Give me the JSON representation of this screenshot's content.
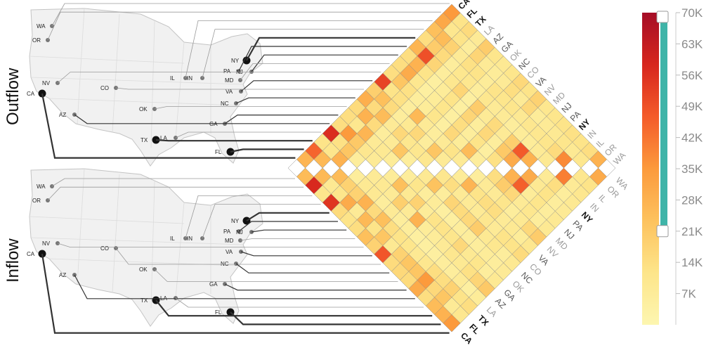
{
  "sections": [
    {
      "id": "outflow",
      "label": "Outflow"
    },
    {
      "id": "inflow",
      "label": "Inflow"
    }
  ],
  "states": [
    {
      "code": "WA",
      "emphasis": "light"
    },
    {
      "code": "OR",
      "emphasis": "light"
    },
    {
      "code": "IL",
      "emphasis": "light"
    },
    {
      "code": "IN",
      "emphasis": "light"
    },
    {
      "code": "NY",
      "emphasis": "bold"
    },
    {
      "code": "PA",
      "emphasis": "medium"
    },
    {
      "code": "NJ",
      "emphasis": "medium"
    },
    {
      "code": "MD",
      "emphasis": "light"
    },
    {
      "code": "NV",
      "emphasis": "light"
    },
    {
      "code": "VA",
      "emphasis": "medium"
    },
    {
      "code": "CO",
      "emphasis": "light"
    },
    {
      "code": "NC",
      "emphasis": "medium"
    },
    {
      "code": "OK",
      "emphasis": "light"
    },
    {
      "code": "GA",
      "emphasis": "medium"
    },
    {
      "code": "AZ",
      "emphasis": "medium"
    },
    {
      "code": "LA",
      "emphasis": "light"
    },
    {
      "code": "TX",
      "emphasis": "bold"
    },
    {
      "code": "FL",
      "emphasis": "bold"
    },
    {
      "code": "CA",
      "emphasis": "bold"
    }
  ],
  "colors": {
    "scale": [
      "#fdf6b0",
      "#fde58a",
      "#fdc25e",
      "#fc9a3c",
      "#f45b2a",
      "#d7261e",
      "#a50d26"
    ],
    "missing": "#ffffff",
    "cell_stroke": "#8c8c8c",
    "slider_track": "#3fb4a8",
    "line": "#333333",
    "map_fill": "#f1f1f1",
    "map_stroke": "#c4c4c4"
  },
  "chart_data": {
    "type": "heatmap",
    "title": "",
    "xlabel": "",
    "ylabel": "",
    "rows": [
      "WA",
      "OR",
      "IL",
      "IN",
      "NY",
      "PA",
      "NJ",
      "MD",
      "NV",
      "VA",
      "CO",
      "NC",
      "OK",
      "GA",
      "AZ",
      "LA",
      "TX",
      "FL",
      "CA"
    ],
    "cols": [
      "WA",
      "OR",
      "IL",
      "IN",
      "NY",
      "PA",
      "NJ",
      "MD",
      "NV",
      "VA",
      "CO",
      "NC",
      "OK",
      "GA",
      "AZ",
      "LA",
      "TX",
      "FL",
      "CA"
    ],
    "values": [
      [
        null,
        28,
        14,
        12,
        13,
        12,
        11,
        10,
        18,
        12,
        16,
        11,
        9,
        11,
        20,
        8,
        15,
        12,
        35
      ],
      [
        30,
        null,
        10,
        9,
        11,
        9,
        8,
        7,
        16,
        8,
        14,
        8,
        7,
        8,
        17,
        6,
        12,
        10,
        31
      ],
      [
        12,
        10,
        null,
        38,
        15,
        11,
        10,
        10,
        9,
        11,
        11,
        12,
        7,
        12,
        13,
        8,
        18,
        25,
        24
      ],
      [
        10,
        8,
        40,
        null,
        9,
        8,
        7,
        7,
        6,
        8,
        8,
        10,
        6,
        10,
        10,
        6,
        15,
        20,
        14
      ],
      [
        9,
        6,
        14,
        8,
        null,
        28,
        47,
        19,
        8,
        15,
        8,
        20,
        5,
        17,
        10,
        6,
        17,
        49,
        27
      ],
      [
        8,
        6,
        12,
        9,
        30,
        null,
        30,
        21,
        6,
        16,
        6,
        17,
        5,
        12,
        7,
        5,
        12,
        28,
        14
      ],
      [
        9,
        6,
        11,
        7,
        46,
        28,
        null,
        13,
        5,
        12,
        6,
        14,
        5,
        11,
        7,
        5,
        10,
        30,
        14
      ],
      [
        9,
        6,
        10,
        8,
        16,
        20,
        14,
        null,
        6,
        25,
        7,
        16,
        5,
        11,
        7,
        6,
        13,
        22,
        14
      ],
      [
        20,
        16,
        9,
        6,
        11,
        8,
        8,
        6,
        null,
        8,
        12,
        8,
        6,
        8,
        26,
        6,
        13,
        12,
        52
      ],
      [
        10,
        7,
        9,
        8,
        14,
        14,
        12,
        27,
        7,
        null,
        8,
        22,
        6,
        16,
        9,
        6,
        15,
        24,
        19
      ],
      [
        15,
        12,
        12,
        8,
        10,
        8,
        8,
        8,
        14,
        10,
        null,
        10,
        10,
        10,
        16,
        8,
        25,
        15,
        29
      ],
      [
        9,
        6,
        10,
        9,
        20,
        16,
        15,
        17,
        6,
        23,
        9,
        null,
        6,
        22,
        8,
        6,
        15,
        28,
        15
      ],
      [
        8,
        6,
        7,
        6,
        6,
        6,
        5,
        5,
        7,
        6,
        11,
        6,
        null,
        7,
        9,
        8,
        27,
        10,
        14
      ],
      [
        9,
        6,
        11,
        9,
        16,
        11,
        12,
        12,
        7,
        18,
        9,
        24,
        7,
        null,
        8,
        10,
        21,
        35,
        14
      ],
      [
        21,
        17,
        13,
        9,
        10,
        8,
        7,
        7,
        28,
        8,
        19,
        8,
        9,
        8,
        null,
        6,
        22,
        13,
        57
      ],
      [
        7,
        5,
        8,
        6,
        6,
        5,
        5,
        5,
        6,
        6,
        8,
        6,
        9,
        9,
        6,
        null,
        28,
        11,
        12
      ],
      [
        14,
        12,
        18,
        14,
        14,
        10,
        9,
        11,
        12,
        14,
        24,
        15,
        28,
        18,
        18,
        25,
        null,
        26,
        45
      ],
      [
        10,
        8,
        22,
        16,
        35,
        22,
        22,
        18,
        9,
        22,
        12,
        26,
        8,
        30,
        11,
        9,
        26,
        null,
        27
      ],
      [
        35,
        28,
        25,
        14,
        30,
        15,
        16,
        15,
        48,
        18,
        24,
        14,
        12,
        15,
        55,
        11,
        58,
        25,
        null
      ]
    ],
    "color_scale": {
      "min": 0,
      "max": 70000,
      "ticks": [
        "70K",
        "63K",
        "56K",
        "49K",
        "42K",
        "35K",
        "28K",
        "21K",
        "14K",
        "7K"
      ],
      "range_slider": {
        "low": 21000,
        "high": 70000
      }
    }
  }
}
